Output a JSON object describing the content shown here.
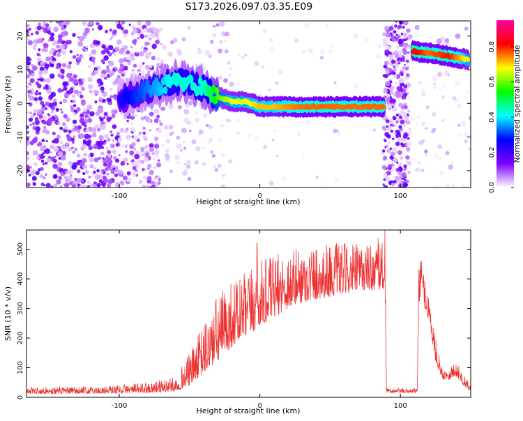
{
  "title": "S173.2026.097.03.35.E09",
  "chart_data": [
    {
      "type": "heatmap",
      "xlabel": "Height of straight line (km)",
      "ylabel": "Frequency (Hz)",
      "xlim": [
        -166,
        150
      ],
      "ylim": [
        -25,
        24.5
      ],
      "xticks": [
        -100,
        0,
        100
      ],
      "yticks": [
        -20,
        -10,
        0,
        10,
        20
      ],
      "grid": false,
      "colorbar": {
        "label": "Normalized spectral amplitude",
        "range": [
          0.0,
          0.95
        ],
        "ticks": [
          0.0,
          0.2,
          0.4,
          0.6,
          0.8
        ],
        "tick_labels": [
          "0.0",
          "0.2",
          "0.4",
          "0.6",
          "0.8"
        ],
        "colors": [
          "#ffffff",
          "#7f00ff",
          "#0000ff",
          "#00ffff",
          "#00ff00",
          "#ffff00",
          "#ff0000",
          "#ff00a0"
        ]
      },
      "ridge": [
        {
          "x": -100,
          "y": 1,
          "amp": 0.25
        },
        {
          "x": -90,
          "y": 2.5,
          "amp": 0.3
        },
        {
          "x": -80,
          "y": 4,
          "amp": 0.35
        },
        {
          "x": -70,
          "y": 5.5,
          "amp": 0.4
        },
        {
          "x": -60,
          "y": 6.5,
          "amp": 0.45
        },
        {
          "x": -50,
          "y": 6,
          "amp": 0.45
        },
        {
          "x": -40,
          "y": 4.5,
          "amp": 0.45
        },
        {
          "x": -30,
          "y": 2,
          "amp": 0.6
        },
        {
          "x": -20,
          "y": 0.5,
          "amp": 0.7
        },
        {
          "x": -10,
          "y": 0.5,
          "amp": 0.7
        },
        {
          "x": 0,
          "y": -1,
          "amp": 0.75
        },
        {
          "x": 10,
          "y": -1,
          "amp": 0.75
        },
        {
          "x": 30,
          "y": -1,
          "amp": 0.8
        },
        {
          "x": 50,
          "y": -1,
          "amp": 0.8
        },
        {
          "x": 70,
          "y": -1,
          "amp": 0.8
        },
        {
          "x": 88,
          "y": -1,
          "amp": 0.8
        },
        {
          "x": 108,
          "y": 15.5,
          "amp": 0.9
        },
        {
          "x": 120,
          "y": 15,
          "amp": 0.8
        },
        {
          "x": 135,
          "y": 14,
          "amp": 0.85
        },
        {
          "x": 148,
          "y": 13,
          "amp": 0.7
        }
      ]
    },
    {
      "type": "line",
      "xlabel": "Height of straight line (km)",
      "ylabel": "SNR (10 * v/v)",
      "xlim": [
        -166,
        150
      ],
      "ylim": [
        0,
        565
      ],
      "xticks": [
        -100,
        0,
        100
      ],
      "yticks": [
        0,
        100,
        200,
        300,
        400,
        500
      ],
      "grid": false,
      "series": [
        {
          "name": "SNR",
          "color": "#ee3333",
          "envelope_x": [
            -166,
            -120,
            -80,
            -60,
            -50,
            -40,
            -30,
            -20,
            -10,
            0,
            10,
            20,
            30,
            40,
            50,
            60,
            70,
            80,
            89,
            90,
            95,
            105,
            112,
            113,
            115,
            120,
            125,
            130,
            135,
            140,
            145,
            150
          ],
          "envelope_low": [
            12,
            12,
            15,
            20,
            40,
            80,
            120,
            170,
            200,
            240,
            270,
            300,
            320,
            330,
            340,
            350,
            360,
            360,
            360,
            15,
            15,
            15,
            15,
            300,
            340,
            260,
            120,
            60,
            60,
            70,
            40,
            20
          ],
          "envelope_high": [
            35,
            35,
            50,
            70,
            150,
            250,
            350,
            400,
            420,
            460,
            480,
            500,
            510,
            520,
            525,
            520,
            520,
            520,
            560,
            30,
            30,
            30,
            30,
            450,
            460,
            360,
            200,
            90,
            110,
            120,
            80,
            40
          ],
          "spikes": [
            {
              "x": -2,
              "y": 520
            },
            {
              "x": 89,
              "y": 565
            },
            {
              "x": 115,
              "y": 460
            }
          ]
        }
      ]
    }
  ]
}
